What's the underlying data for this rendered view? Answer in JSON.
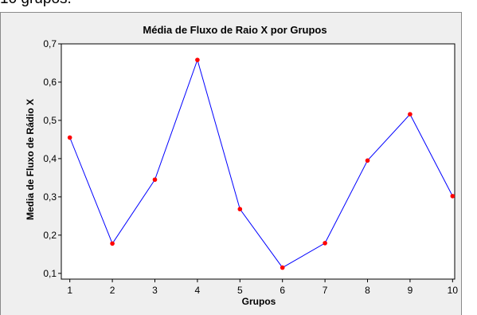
{
  "page": {
    "top_text": "10 grupos."
  },
  "chart_data": {
    "type": "line",
    "title": "Média de Fluxo de Raio X por Grupos",
    "xlabel": "Grupos",
    "ylabel": "Media de Fluxo de Rádio X",
    "x": [
      1,
      2,
      3,
      4,
      5,
      6,
      7,
      8,
      9,
      10
    ],
    "y": [
      0.455,
      0.178,
      0.345,
      0.658,
      0.268,
      0.115,
      0.179,
      0.395,
      0.516,
      0.302
    ],
    "x_tick_labels": [
      "1",
      "2",
      "3",
      "4",
      "5",
      "6",
      "7",
      "8",
      "9",
      "10"
    ],
    "y_ticks": [
      0.1,
      0.2,
      0.3,
      0.4,
      0.5,
      0.6,
      0.7
    ],
    "y_tick_labels": [
      "0,1",
      "0,2",
      "0,3",
      "0,4",
      "0,5",
      "0,6",
      "0,7"
    ],
    "xlim": [
      0.8,
      10.05
    ],
    "ylim": [
      0.085,
      0.7
    ],
    "grid": false,
    "line_color": "#0000ff",
    "marker_color": "#ff0000",
    "plot_background": "#ffffff",
    "frame_background": "#efefef"
  }
}
